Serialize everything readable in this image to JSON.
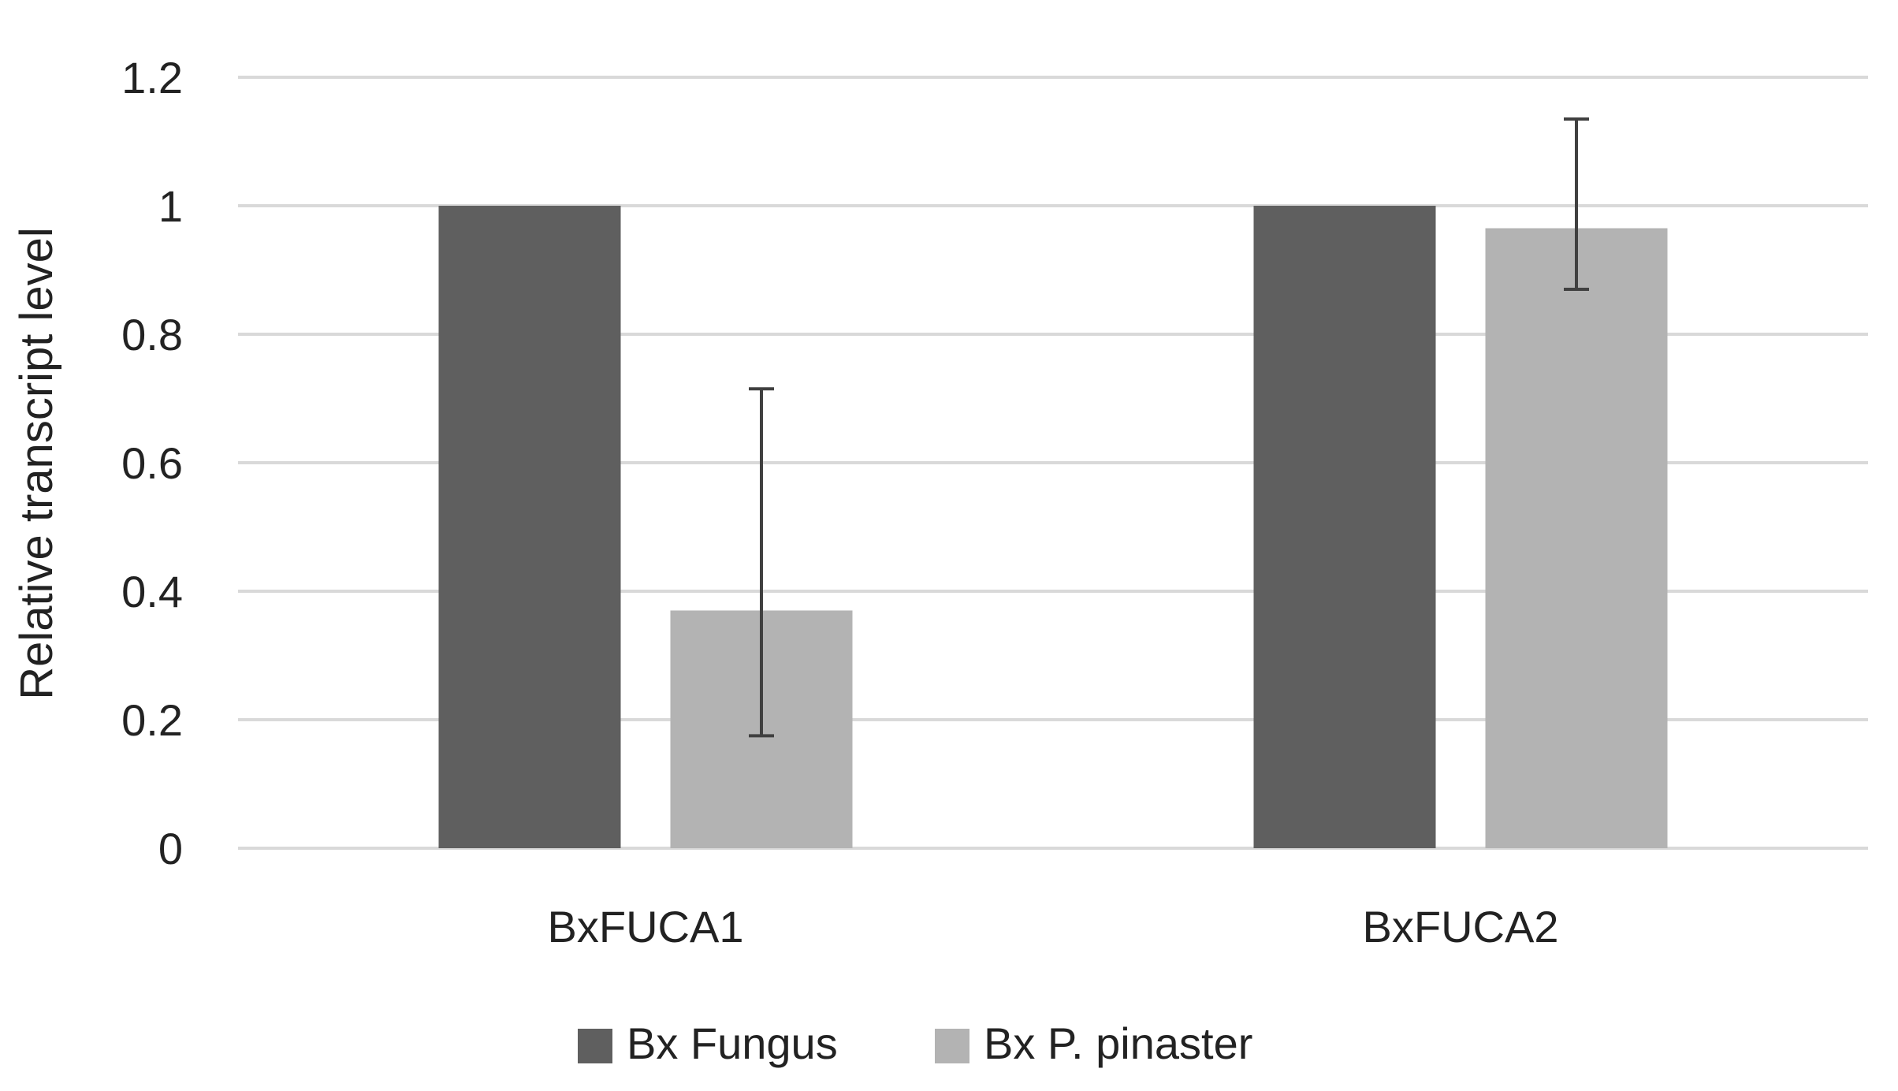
{
  "chart_data": {
    "type": "bar",
    "title": "",
    "xlabel": "",
    "ylabel": "Relative transcript level",
    "categories": [
      "BxFUCA1",
      "BxFUCA2"
    ],
    "ylim": [
      0,
      1.2
    ],
    "yticks": [
      0,
      0.2,
      0.4,
      0.6,
      0.8,
      1,
      1.2
    ],
    "ytick_labels": [
      "0",
      "0.2",
      "0.4",
      "0.6",
      "0.8",
      "1",
      "1.2"
    ],
    "grid": true,
    "legend_position": "bottom",
    "series": [
      {
        "name": "Bx Fungus",
        "color": "#5f5f5f",
        "values": [
          1.0,
          1.0
        ],
        "error": [
          null,
          null
        ]
      },
      {
        "name": "Bx P. pinaster",
        "color": "#b3b3b3",
        "values": [
          0.37,
          0.965
        ],
        "error": [
          [
            0.175,
            0.715
          ],
          [
            0.87,
            1.135
          ]
        ]
      }
    ]
  }
}
